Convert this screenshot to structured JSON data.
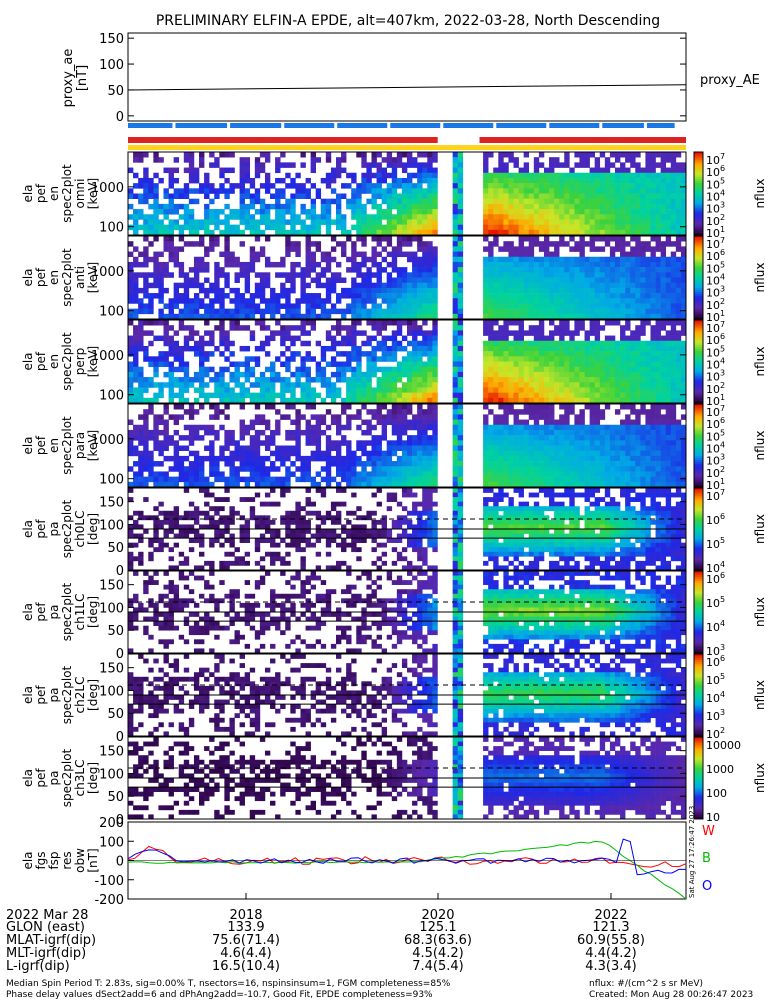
{
  "title": "PRELIMINARY ELFIN-A EPDE, alt=407km, 2022-03-28, North Descending",
  "watermark": "Sat Aug 27 17:26:47 2023",
  "colors": {
    "red": "#dd2222",
    "blue": "#1a78e6",
    "yellow": "#ffd21e",
    "fgs_w": "#ff0000",
    "fgs_b": "#00bb00",
    "fgs_o": "#0000ff"
  },
  "chart_data": [
    {
      "type": "line",
      "id": "proxy_ae",
      "ylabel": "proxy_ae [nT]",
      "ylabel_lines": [
        "proxy_ae",
        "[nT]"
      ],
      "ylim": [
        -10,
        160
      ],
      "yticks": [
        "150",
        "100",
        "50",
        "0"
      ],
      "legend": "proxy_AE",
      "series": [
        {
          "name": "proxy_AE",
          "x": [
            0,
            1
          ],
          "values": [
            50,
            60
          ]
        }
      ],
      "bars": {
        "blue_gaps": [
          0.085,
          0.183,
          0.28,
          0.375,
          0.47,
          0.565,
          0.66,
          0.755,
          0.85,
          0.93,
          0.985
        ],
        "red_segments": [
          [
            0.0,
            0.555
          ],
          [
            0.63,
            1.0
          ]
        ],
        "yellow_segment": [
          0.0,
          1.0
        ]
      }
    },
    {
      "type": "heatmap",
      "id": "ela_pef_en_spec2plot_omni",
      "ylabel_lines": [
        "ela",
        "pef",
        "en",
        "spec2plot",
        "omni",
        "[keV]"
      ],
      "yscale": "log",
      "yticks": [
        "1000",
        "100"
      ],
      "cbar_ticks": [
        "10^7",
        "10^6",
        "10^5",
        "10^4",
        "10^3",
        "10^2",
        "10^1"
      ],
      "cbar_label": "nflux"
    },
    {
      "type": "heatmap",
      "id": "ela_pef_en_spec2plot_anti",
      "ylabel_lines": [
        "ela",
        "pef",
        "en",
        "spec2plot",
        "anti",
        "[keV]"
      ],
      "yscale": "log",
      "yticks": [
        "1000",
        "100"
      ],
      "cbar_ticks": [
        "10^7",
        "10^6",
        "10^5",
        "10^4",
        "10^3",
        "10^2",
        "10^1"
      ],
      "cbar_label": "nflux"
    },
    {
      "type": "heatmap",
      "id": "ela_pef_en_spec2plot_perp",
      "ylabel_lines": [
        "ela",
        "pef",
        "en",
        "spec2plot",
        "perp",
        "[keV]"
      ],
      "yscale": "log",
      "yticks": [
        "1000",
        "100"
      ],
      "cbar_ticks": [
        "10^7",
        "10^6",
        "10^5",
        "10^4",
        "10^3",
        "10^2",
        "10^1"
      ],
      "cbar_label": "nflux"
    },
    {
      "type": "heatmap",
      "id": "ela_pef_en_spec2plot_para",
      "ylabel_lines": [
        "ela",
        "pef",
        "en",
        "spec2plot",
        "para",
        "[keV]"
      ],
      "yscale": "log",
      "yticks": [
        "1000",
        "100"
      ],
      "cbar_ticks": [
        "10^7",
        "10^6",
        "10^5",
        "10^4",
        "10^3",
        "10^2",
        "10^1"
      ],
      "cbar_label": "nflux"
    },
    {
      "type": "heatmap",
      "id": "ela_pef_pa_spec2plot_ch0LC",
      "ylabel_lines": [
        "ela",
        "pef",
        "pa",
        "spec2plot",
        "ch0LC",
        "[deg]"
      ],
      "yticks": [
        "150",
        "100",
        "50",
        "0"
      ],
      "cbar_ticks": [
        "10^7",
        "10^6",
        "10^5",
        "10^4"
      ],
      "cbar_label": "nflux"
    },
    {
      "type": "heatmap",
      "id": "ela_pef_pa_spec2plot_ch1LC",
      "ylabel_lines": [
        "ela",
        "pef",
        "pa",
        "spec2plot",
        "ch1LC",
        "[deg]"
      ],
      "yticks": [
        "150",
        "100",
        "50",
        "0"
      ],
      "cbar_ticks": [
        "10^6",
        "10^5",
        "10^4",
        "10^3"
      ],
      "cbar_label": "nflux"
    },
    {
      "type": "heatmap",
      "id": "ela_pef_pa_spec2plot_ch2LC",
      "ylabel_lines": [
        "ela",
        "pef",
        "pa",
        "spec2plot",
        "ch2LC",
        "[deg]"
      ],
      "yticks": [
        "150",
        "100",
        "50",
        "0"
      ],
      "cbar_ticks": [
        "10^6",
        "10^5",
        "10^4",
        "10^3",
        "10^2"
      ],
      "cbar_label": "nflux"
    },
    {
      "type": "heatmap",
      "id": "ela_pef_pa_spec2plot_ch3LC",
      "ylabel_lines": [
        "ela",
        "pef",
        "pa",
        "spec2plot",
        "ch3LC",
        "[deg]"
      ],
      "yticks": [
        "150",
        "100",
        "50",
        "0"
      ],
      "cbar_ticks": [
        "10000",
        "1000",
        "100",
        "10"
      ],
      "cbar_label": "nflux"
    },
    {
      "type": "line",
      "id": "ela_fgs_fsp_res_obw",
      "ylabel_lines": [
        "ela",
        "fgs",
        "fsp",
        "res",
        "obw",
        "[nT]"
      ],
      "ylim": [
        -200,
        200
      ],
      "yticks": [
        "200",
        "100",
        "0",
        "-100",
        "-200"
      ],
      "legend_items": [
        "W",
        "B",
        "O"
      ]
    }
  ],
  "xaxis": {
    "rows": [
      {
        "label": "2022 Mar 28",
        "values": [
          "2018",
          "2020",
          "2022"
        ]
      },
      {
        "label": "GLON (east)",
        "values": [
          "133.9",
          "125.1",
          "121.3"
        ]
      },
      {
        "label": "MLAT-igrf(dip)",
        "values": [
          "75.6(71.4)",
          "68.3(63.6)",
          "60.9(55.8)"
        ]
      },
      {
        "label": "MLT-igrf(dip)",
        "values": [
          "4.6(4.4)",
          "4.5(4.2)",
          "4.4(4.2)"
        ]
      },
      {
        "label": "L-igrf(dip)",
        "values": [
          "16.5(10.4)",
          "7.4(5.4)",
          "4.3(3.4)"
        ]
      }
    ]
  },
  "footer": {
    "line1_left": "Median Spin Period T: 2.83s, sig=0.00% T, nsectors=16, nspinsinsum=1, FGM completeness=85%",
    "line2_left": "Phase delay values dSect2add=6 and dPhAng2add=-10.7, Good Fit, EPDE completeness=93%",
    "line1_right": "nflux: #/(cm^2 s sr MeV)",
    "line2_right": "Created: Mon Aug 28 00:26:47 2023"
  }
}
